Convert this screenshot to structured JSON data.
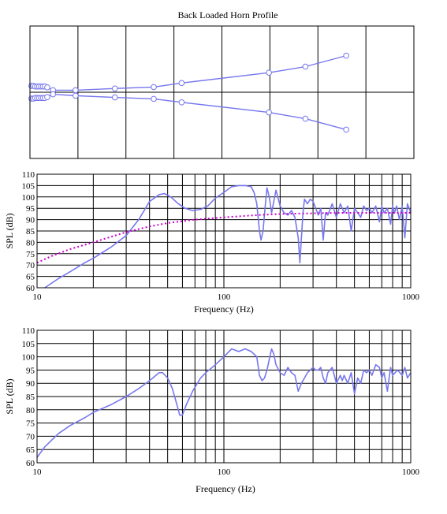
{
  "chart_data": [
    {
      "type": "line",
      "title": "Back Loaded Horn Profile",
      "xlabel": "",
      "ylabel": "",
      "grid": true,
      "x_divisions": 8,
      "xlim": [
        0,
        8
      ],
      "ylim": [
        -2.3,
        2.3
      ],
      "series": [
        {
          "style": "line-with-circle-markers",
          "color": "#7777ee",
          "x": [
            0.03,
            0.07,
            0.11,
            0.15,
            0.19,
            0.23,
            0.27,
            0.31,
            0.36,
            0.48,
            0.95,
            1.77,
            2.58,
            3.16,
            4.98,
            5.74,
            6.59
          ],
          "y": [
            0.22,
            0.22,
            0.2,
            0.2,
            0.2,
            0.2,
            0.2,
            0.2,
            0.17,
            0.07,
            0.07,
            0.13,
            0.18,
            0.32,
            0.68,
            0.89,
            1.27
          ]
        },
        {
          "style": "line-with-circle-markers",
          "color": "#7777ee",
          "x": [
            0.03,
            0.07,
            0.11,
            0.15,
            0.19,
            0.23,
            0.27,
            0.31,
            0.36,
            0.48,
            0.95,
            1.77,
            2.58,
            3.16,
            4.98,
            5.74,
            6.59
          ],
          "y": [
            -0.22,
            -0.22,
            -0.2,
            -0.2,
            -0.2,
            -0.2,
            -0.2,
            -0.2,
            -0.17,
            -0.07,
            -0.12,
            -0.18,
            -0.23,
            -0.35,
            -0.7,
            -0.92,
            -1.3
          ]
        }
      ]
    },
    {
      "type": "line",
      "xlabel": "Frequency (Hz)",
      "ylabel": "SPL (dB)",
      "x_scale": "log",
      "xlim": [
        10,
        1000
      ],
      "ylim": [
        60,
        110
      ],
      "x_ticks": [
        "10",
        "100",
        "1000"
      ],
      "y_ticks": [
        "60",
        "65",
        "70",
        "75",
        "80",
        "85",
        "90",
        "95",
        "100",
        "105",
        "110"
      ],
      "grid": true,
      "series": [
        {
          "style": "solid",
          "color": "#7777ee",
          "x": [
            11,
            13,
            15,
            18,
            20,
            25,
            30,
            35,
            40,
            45,
            48,
            52,
            57,
            62,
            68,
            75,
            82,
            90,
            100,
            110,
            120,
            130,
            140,
            145,
            150,
            155,
            158,
            162,
            166,
            170,
            175,
            180,
            185,
            190,
            200,
            210,
            220,
            230,
            240,
            250,
            255,
            260,
            265,
            270,
            280,
            290,
            300,
            310,
            320,
            330,
            340,
            350,
            360,
            380,
            400,
            420,
            440,
            460,
            480,
            500,
            520,
            540,
            560,
            580,
            600,
            620,
            650,
            680,
            700,
            720,
            750,
            780,
            800,
            820,
            840,
            870,
            900,
            930,
            960,
            1000
          ],
          "y": [
            60,
            64,
            67,
            71,
            73,
            78,
            83,
            90,
            98,
            101,
            101.5,
            100,
            97,
            95,
            94,
            94.5,
            96,
            99.5,
            102,
            104.5,
            105,
            105,
            104.5,
            102,
            97,
            85,
            81,
            85,
            95,
            104,
            100,
            93,
            98,
            103,
            96,
            93,
            92,
            94,
            91,
            82,
            71,
            82,
            93,
            99,
            97,
            99,
            98,
            95,
            92,
            95,
            81,
            93,
            92,
            97,
            91,
            97,
            93,
            96,
            85,
            95,
            93,
            91,
            96,
            94,
            95,
            93,
            96,
            89,
            96,
            93,
            95,
            88,
            96,
            93,
            96,
            90,
            96,
            82,
            97,
            93
          ]
        },
        {
          "style": "dotted",
          "color": "#cc00cc",
          "x": [
            10,
            12,
            15,
            20,
            25,
            30,
            40,
            50,
            70,
            100,
            150,
            200,
            300,
            400,
            500,
            700,
            1000
          ],
          "y": [
            71,
            74,
            77,
            80,
            82.5,
            84.5,
            87,
            88.5,
            90,
            91,
            92,
            92.5,
            92.8,
            93,
            93,
            93,
            93
          ]
        }
      ]
    },
    {
      "type": "line",
      "xlabel": "Frequency (Hz)",
      "ylabel": "SPL (dB)",
      "x_scale": "log",
      "xlim": [
        10,
        1000
      ],
      "ylim": [
        60,
        110
      ],
      "x_ticks": [
        "10",
        "100",
        "1000"
      ],
      "y_ticks": [
        "60",
        "65",
        "70",
        "75",
        "80",
        "85",
        "90",
        "95",
        "100",
        "105",
        "110"
      ],
      "grid": true,
      "series": [
        {
          "style": "solid",
          "color": "#7777ee",
          "x": [
            10,
            11,
            13,
            15,
            18,
            20,
            25,
            30,
            35,
            40,
            45,
            47,
            50,
            53,
            56,
            58,
            60,
            63,
            68,
            75,
            80,
            90,
            100,
            110,
            120,
            130,
            140,
            150,
            155,
            160,
            165,
            170,
            180,
            185,
            190,
            200,
            210,
            220,
            230,
            240,
            250,
            260,
            270,
            280,
            290,
            300,
            310,
            320,
            330,
            340,
            350,
            360,
            370,
            380,
            400,
            420,
            430,
            440,
            460,
            480,
            500,
            520,
            540,
            560,
            580,
            600,
            620,
            650,
            680,
            700,
            720,
            750,
            780,
            800,
            850,
            900,
            930,
            960,
            1000
          ],
          "y": [
            62,
            66,
            71,
            74,
            77,
            79,
            82,
            85,
            88,
            91,
            94,
            94,
            92,
            88,
            82,
            78,
            78,
            82,
            87,
            92,
            94,
            97,
            100,
            103,
            102,
            103,
            102,
            100,
            93,
            91,
            92,
            95,
            103,
            101,
            97,
            94,
            93,
            96,
            94,
            93,
            87,
            90,
            92,
            94,
            95,
            96,
            95,
            95,
            96,
            92,
            90,
            94,
            95,
            96,
            90,
            93,
            91,
            93,
            90,
            94,
            86,
            92,
            90,
            95,
            94,
            95,
            93,
            97,
            96,
            92,
            94,
            87,
            96,
            93,
            95,
            93,
            96,
            92,
            94
          ]
        }
      ]
    }
  ]
}
